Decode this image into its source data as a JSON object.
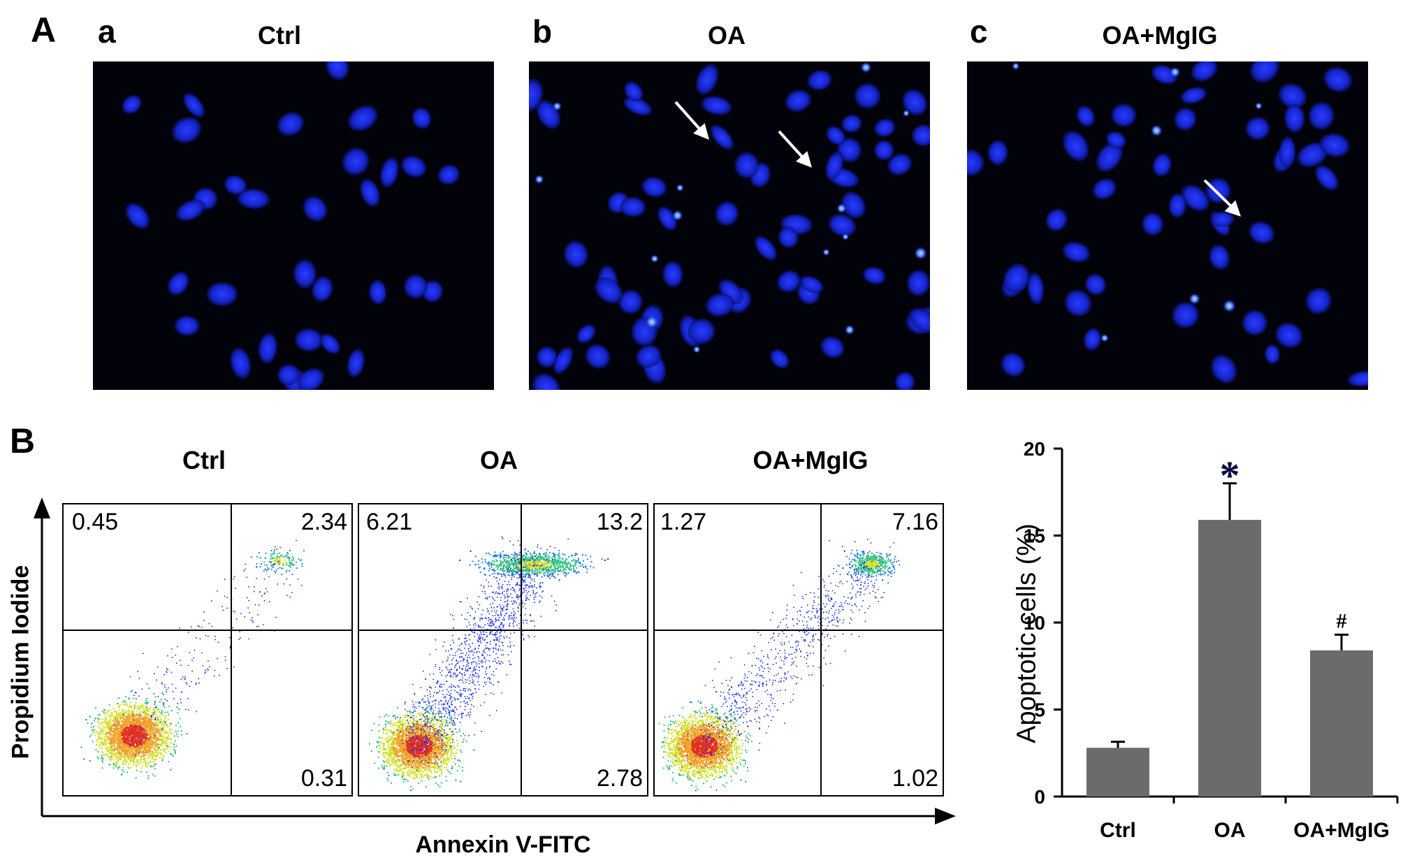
{
  "panelA": {
    "letter": "A",
    "subpanels": [
      {
        "sub": "a",
        "title": "Ctrl"
      },
      {
        "sub": "b",
        "title": "OA"
      },
      {
        "sub": "c",
        "title": "OA+MgIG"
      }
    ]
  },
  "panelB": {
    "letter": "B",
    "flow": {
      "ylabel": "Propidium Iodide",
      "xlabel": "Annexin V-FITC",
      "plots": [
        {
          "title": "Ctrl",
          "ul": "0.45",
          "ur": "2.34",
          "lr": "0.31"
        },
        {
          "title": "OA",
          "ul": "6.21",
          "ur": "13.2",
          "lr": "2.78"
        },
        {
          "title": "OA+MgIG",
          "ul": "1.27",
          "ur": "7.16",
          "lr": "1.02"
        }
      ]
    }
  },
  "chart_data": {
    "type": "bar",
    "categories": [
      "Ctrl",
      "OA",
      "OA+MgIG"
    ],
    "values": [
      2.8,
      15.9,
      8.4
    ],
    "errors": [
      0.35,
      2.1,
      0.9
    ],
    "annotations": [
      "",
      "*",
      "#"
    ],
    "ylabel": "Apoptotic cells (%)",
    "ylim": [
      0,
      20
    ],
    "yticks": [
      "0",
      "5",
      "10",
      "15",
      "20"
    ],
    "bar_color": "#6b6b6b"
  }
}
